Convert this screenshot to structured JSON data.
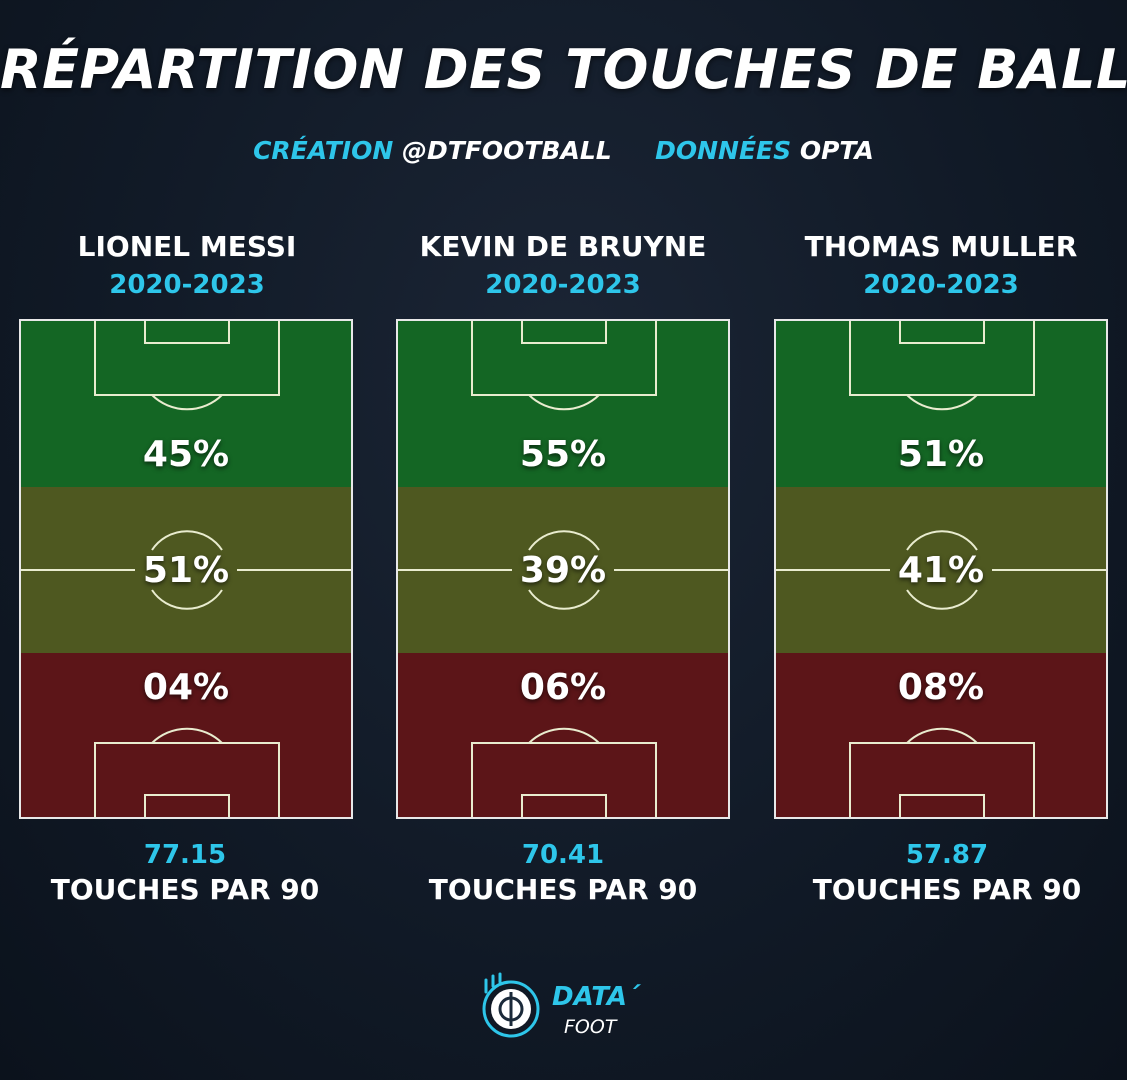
{
  "header": {
    "title": "RÉPARTITION DES TOUCHES DE BALLE",
    "credit_label": "CRÉATION",
    "credit_value": "@DTFOOTBALL",
    "data_label": "DONNÉES",
    "data_value": "OPTA"
  },
  "players": [
    {
      "name": "LIONEL MESSI",
      "years": "2020-2023",
      "zones": {
        "attack": "45%",
        "middle": "51%",
        "defense": "04%"
      },
      "touches_value": "77.15",
      "touches_label": "TOUCHES PAR 90"
    },
    {
      "name": "KEVIN DE BRUYNE",
      "years": "2020-2023",
      "zones": {
        "attack": "55%",
        "middle": "39%",
        "defense": "06%"
      },
      "touches_value": "70.41",
      "touches_label": "TOUCHES PAR 90"
    },
    {
      "name": "THOMAS MULLER",
      "years": "2020-2023",
      "zones": {
        "attack": "51%",
        "middle": "41%",
        "defense": "08%"
      },
      "touches_value": "57.87",
      "touches_label": "TOUCHES PAR 90"
    }
  ],
  "logo": {
    "main": "DATA´",
    "sub": "FOOT"
  },
  "colors": {
    "accent": "#2ec6ea",
    "attack_zone": "#146624",
    "middle_zone": "#4e5820",
    "defense_zone": "#5c1518"
  }
}
